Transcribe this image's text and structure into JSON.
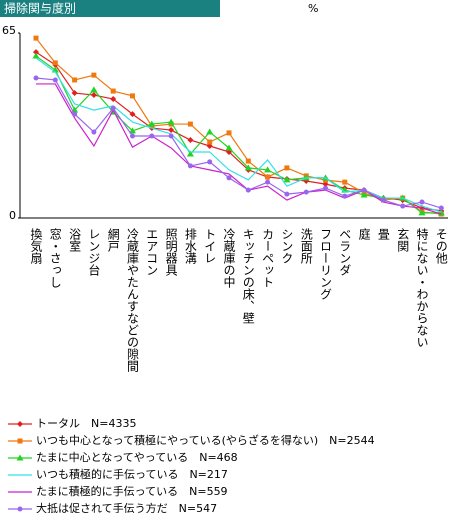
{
  "chart_data": {
    "type": "line",
    "title": "掃除関与度別",
    "unit": "%",
    "categories": [
      "換気扇",
      "窓・さっし",
      "浴室",
      "レンジ台",
      "網戸",
      "冷蔵庫やたんすなどの隙間",
      "エアコン",
      "照明器具",
      "排水溝",
      "トイレ",
      "冷蔵庫の中",
      "キッチンの床、壁",
      "カーペット",
      "シンク",
      "洗面所",
      "フローリング",
      "ベランダ",
      "庭",
      "畳",
      "玄関",
      "特にない・わからない",
      "その他"
    ],
    "ylim": [
      0,
      65
    ],
    "yticks": [
      0,
      65
    ],
    "series": [
      {
        "name": "トータル　N=4335",
        "color": "#e02020",
        "marker": "diamond",
        "values": [
          58.3,
          53.8,
          43.9,
          43.2,
          41.8,
          36.5,
          31.6,
          30.9,
          27.4,
          25.3,
          23.2,
          16.9,
          14.4,
          13.7,
          13.0,
          11.9,
          10.5,
          9.8,
          7.0,
          6.3,
          3.5,
          2.5
        ]
      },
      {
        "name": "いつも中心となって積極にやっている(やらざるを得ない)　N=2544",
        "color": "#f07810",
        "marker": "square",
        "values": [
          63.2,
          54.5,
          48.5,
          50.2,
          44.6,
          42.9,
          32.3,
          33.0,
          33.0,
          26.7,
          29.9,
          20.0,
          14.4,
          17.6,
          14.8,
          13.3,
          12.6,
          8.8,
          6.3,
          7.0,
          2.1,
          1.4
        ]
      },
      {
        "name": "たまに中心となってやっている　N=468",
        "color": "#22d422",
        "marker": "triangle",
        "values": [
          56.9,
          52.0,
          37.9,
          45.0,
          37.2,
          30.6,
          33.0,
          33.7,
          22.5,
          30.2,
          24.6,
          17.6,
          16.9,
          13.4,
          14.1,
          14.1,
          9.8,
          8.1,
          7.0,
          7.0,
          1.8,
          1.8
        ]
      },
      {
        "name": "いつも積極的に手伝っている　N=217",
        "color": "#33e0e8",
        "marker": "none",
        "values": [
          56.2,
          51.3,
          40.1,
          37.9,
          39.4,
          33.7,
          31.6,
          29.5,
          23.2,
          23.2,
          16.9,
          13.4,
          20.4,
          11.2,
          14.1,
          14.1,
          9.1,
          9.8,
          7.0,
          7.0,
          4.2,
          2.1
        ]
      },
      {
        "name": "たまに積極的に手伝っている　N=559",
        "color": "#cc22cc",
        "marker": "none",
        "values": [
          47.1,
          47.1,
          35.1,
          25.3,
          37.9,
          24.9,
          28.8,
          24.6,
          18.3,
          16.9,
          15.5,
          9.8,
          11.2,
          6.3,
          9.1,
          9.8,
          7.0,
          9.8,
          5.6,
          4.2,
          3.5,
          1.4
        ]
      },
      {
        "name": "大抵は促されて手伝う方だ　N=547",
        "color": "#9966ee",
        "marker": "circle",
        "values": [
          49.2,
          48.5,
          36.5,
          30.2,
          38.6,
          28.8,
          28.8,
          28.8,
          18.3,
          19.7,
          14.1,
          9.8,
          12.6,
          8.4,
          9.1,
          10.5,
          7.7,
          9.8,
          6.3,
          4.2,
          5.6,
          3.5
        ]
      }
    ]
  }
}
